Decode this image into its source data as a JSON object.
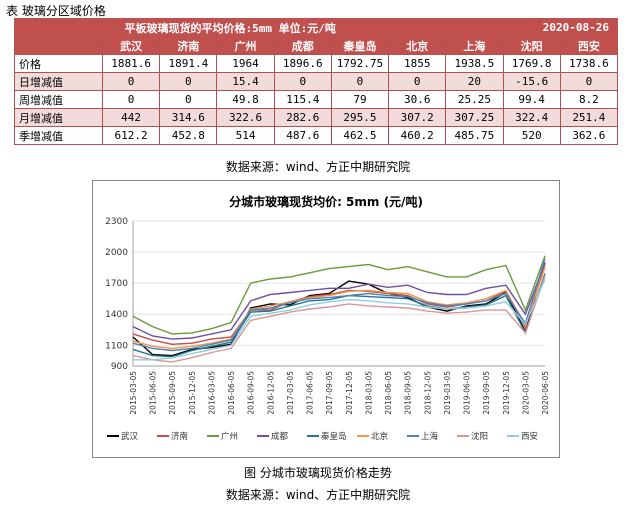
{
  "table_title": "表   玻璃分区域价格",
  "table": {
    "banner_left": "平板玻璃现货的平均价格:5mm   单位:元/吨",
    "banner_date": "2020-08-26",
    "cities": [
      "武汉",
      "济南",
      "广州",
      "成都",
      "秦皇岛",
      "北京",
      "上海",
      "沈阳",
      "西安"
    ],
    "rows": [
      {
        "label": "价格",
        "values": [
          "1881.6",
          "1891.4",
          "1964",
          "1896.6",
          "1792.75",
          "1855",
          "1938.5",
          "1769.8",
          "1738.6"
        ]
      },
      {
        "label": "日增减值",
        "values": [
          "0",
          "0",
          "15.4",
          "0",
          "0",
          "0",
          "20",
          "-15.6",
          "0"
        ]
      },
      {
        "label": "周增减值",
        "values": [
          "0",
          "0",
          "49.8",
          "115.4",
          "79",
          "30.6",
          "25.25",
          "99.4",
          "8.2"
        ]
      },
      {
        "label": "月增减值",
        "values": [
          "442",
          "314.6",
          "322.6",
          "282.6",
          "295.5",
          "307.2",
          "307.25",
          "322.4",
          "251.4"
        ]
      },
      {
        "label": "季增减值",
        "values": [
          "612.2",
          "452.8",
          "514",
          "487.6",
          "462.5",
          "460.2",
          "485.75",
          "520",
          "362.6"
        ]
      }
    ]
  },
  "table_source": "数据来源：wind、方正中期研究院",
  "figure_caption": "图   分城市玻璃现货价格走势",
  "figure_source": "数据来源：wind、方正中期研究院",
  "chart_data": {
    "type": "line",
    "title": "分城市玻璃现货均价: 5mm (元/吨)",
    "ylim": [
      900,
      2300
    ],
    "yticks": [
      900,
      1100,
      1400,
      1700,
      2000,
      2300
    ],
    "ytick_labels": [
      "900",
      "1100",
      "1400",
      "1700",
      "2000",
      "2300"
    ],
    "xtick_labels": [
      "2015-03-05",
      "2015-06-05",
      "2015-09-05",
      "2015-12-05",
      "2016-03-05",
      "2016-06-05",
      "2016-09-05",
      "2016-12-05",
      "2017-03-05",
      "2017-06-05",
      "2017-09-05",
      "2017-12-05",
      "2018-03-05",
      "2018-06-05",
      "2018-09-05",
      "2018-12-05",
      "2019-03-05",
      "2019-06-05",
      "2019-09-05",
      "2019-12-05",
      "2020-03-05",
      "2020-06-05"
    ],
    "legend_position": "bottom",
    "series": [
      {
        "name": "武汉",
        "color": "#000000",
        "values": [
          1180,
          1010,
          1000,
          1060,
          1080,
          1110,
          1460,
          1500,
          1490,
          1580,
          1600,
          1720,
          1690,
          1600,
          1560,
          1470,
          1430,
          1480,
          1500,
          1610,
          1230,
          1900
        ]
      },
      {
        "name": "济南",
        "color": "#c0504d",
        "values": [
          1210,
          1150,
          1110,
          1120,
          1160,
          1180,
          1440,
          1440,
          1520,
          1570,
          1590,
          1630,
          1620,
          1600,
          1580,
          1500,
          1470,
          1500,
          1530,
          1620,
          1270,
          1890
        ]
      },
      {
        "name": "广州",
        "color": "#6a9a3a",
        "values": [
          1380,
          1280,
          1210,
          1220,
          1260,
          1320,
          1700,
          1740,
          1760,
          1800,
          1840,
          1860,
          1880,
          1830,
          1860,
          1810,
          1760,
          1760,
          1830,
          1870,
          1440,
          1964
        ]
      },
      {
        "name": "成都",
        "color": "#6e4fa0",
        "values": [
          1280,
          1190,
          1160,
          1170,
          1210,
          1250,
          1530,
          1590,
          1610,
          1630,
          1650,
          1650,
          1690,
          1660,
          1680,
          1610,
          1590,
          1590,
          1650,
          1680,
          1400,
          1897
        ]
      },
      {
        "name": "秦皇岛",
        "color": "#1f7a8c",
        "values": [
          1060,
          1000,
          990,
          1050,
          1090,
          1130,
          1420,
          1430,
          1480,
          1530,
          1540,
          1580,
          1570,
          1560,
          1550,
          1480,
          1450,
          1470,
          1490,
          1580,
          1220,
          1793
        ]
      },
      {
        "name": "北京",
        "color": "#f79646",
        "values": [
          1140,
          1090,
          1070,
          1090,
          1120,
          1160,
          1450,
          1480,
          1520,
          1560,
          1580,
          1620,
          1630,
          1610,
          1600,
          1520,
          1490,
          1510,
          1550,
          1630,
          1290,
          1855
        ]
      },
      {
        "name": "上海",
        "color": "#4f81bd",
        "values": [
          1120,
          1070,
          1050,
          1070,
          1110,
          1150,
          1440,
          1460,
          1510,
          1550,
          1560,
          1580,
          1600,
          1580,
          1570,
          1510,
          1480,
          1500,
          1530,
          1600,
          1310,
          1939
        ]
      },
      {
        "name": "沈阳",
        "color": "#d99694",
        "values": [
          1000,
          960,
          940,
          980,
          1030,
          1070,
          1340,
          1380,
          1420,
          1450,
          1470,
          1500,
          1480,
          1470,
          1460,
          1430,
          1410,
          1420,
          1440,
          1440,
          1220,
          1770
        ]
      },
      {
        "name": "西安",
        "color": "#93cddd",
        "values": [
          960,
          960,
          980,
          1020,
          1060,
          1100,
          1380,
          1410,
          1440,
          1490,
          1520,
          1540,
          1530,
          1510,
          1500,
          1470,
          1450,
          1460,
          1480,
          1520,
          1300,
          1739
        ]
      }
    ]
  }
}
